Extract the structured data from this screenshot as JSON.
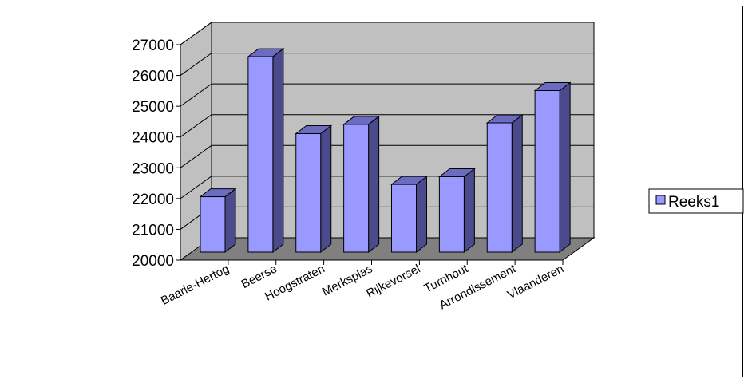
{
  "chart_data": {
    "type": "bar",
    "categories": [
      "Baarle-Hertog",
      "Beerse",
      "Hoogstraten",
      "Merksplas",
      "Rijkevorsel",
      "Turnhout",
      "Arrondissement",
      "Vlaanderen"
    ],
    "series": [
      {
        "name": "Reeks1",
        "values": [
          21800,
          26350,
          23850,
          24150,
          22200,
          22450,
          24200,
          25250
        ]
      }
    ],
    "yticks": [
      "20000",
      "21000",
      "22000",
      "23000",
      "24000",
      "25000",
      "26000",
      "27000"
    ],
    "ylim": [
      20000,
      27000
    ],
    "grid": true,
    "legend": "right",
    "colors": {
      "bar_front": "#9999ff",
      "bar_side": "#4a4a8c",
      "bar_top": "#6b6bc0",
      "wall": "#c0c0c0",
      "floor": "#808080"
    }
  }
}
